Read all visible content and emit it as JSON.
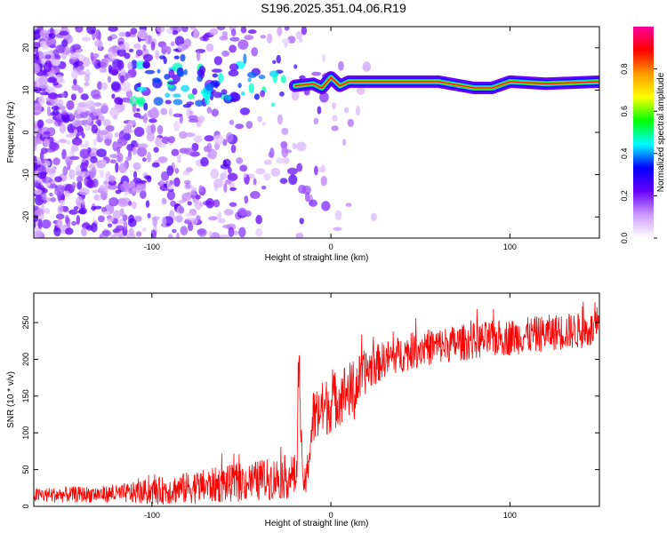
{
  "figure_title": "S196.2025.351.04.06.R19",
  "chart_data": [
    {
      "type": "heatmap",
      "title": "S196.2025.351.04.06.R19",
      "xlabel": "Height of straight line (km)",
      "ylabel": "Frequency (Hz)",
      "xlim": [
        -166,
        150
      ],
      "ylim": [
        -25,
        25
      ],
      "xticks": [
        -100,
        0,
        100
      ],
      "yticks": [
        -20,
        -10,
        0,
        10,
        20
      ],
      "colorbar": {
        "label": "Normalized spectral amplitude",
        "range": [
          0,
          1
        ],
        "ticks": [
          0.0,
          0.2,
          0.4,
          0.6,
          0.8
        ],
        "tick_labels": [
          "0.0",
          "0.2",
          "0.4",
          "0.6",
          "0.8"
        ],
        "colors": [
          "#ffffff",
          "#cc99ff",
          "#6600ff",
          "#0000ff",
          "#00ffff",
          "#00ff00",
          "#ffff00",
          "#ff9900",
          "#ff0000",
          "#ff0099"
        ]
      },
      "signal_track": {
        "description": "Strong narrow band near 12 Hz from about -20 km to 150 km",
        "x": [
          -20,
          -10,
          -5,
          0,
          5,
          10,
          20,
          40,
          60,
          80,
          90,
          100,
          120,
          150
        ],
        "frequency": [
          11,
          11.5,
          10.5,
          13,
          11,
          12,
          12,
          12,
          12,
          10.5,
          10.5,
          12,
          11.5,
          12
        ],
        "peak_amplitude": 0.9
      },
      "noise_region": {
        "description": "Scattered low amplitude noise across all frequencies for heights below about -20 km",
        "x_range": [
          -166,
          -20
        ],
        "amplitude_range": [
          0.05,
          0.25
        ]
      }
    },
    {
      "type": "line",
      "xlabel": "Height of straight line (km)",
      "ylabel": "SNR (10 * v/v)",
      "xlim": [
        -166,
        150
      ],
      "ylim": [
        0,
        290
      ],
      "xticks": [
        -100,
        0,
        100
      ],
      "yticks": [
        0,
        50,
        100,
        150,
        200,
        250
      ],
      "color": "#ff0000",
      "trend": {
        "x": [
          -166,
          -120,
          -100,
          -80,
          -60,
          -40,
          -25,
          -19,
          -18,
          -16,
          -14,
          -10,
          -5,
          0,
          5,
          10,
          13,
          15,
          20,
          30,
          50,
          80,
          100,
          130,
          150
        ],
        "mean": [
          15,
          17,
          20,
          25,
          30,
          35,
          40,
          42,
          210,
          40,
          30,
          120,
          130,
          140,
          150,
          160,
          150,
          170,
          185,
          200,
          215,
          225,
          230,
          238,
          240
        ],
        "spread": [
          10,
          12,
          18,
          22,
          25,
          28,
          30,
          30,
          40,
          20,
          20,
          40,
          40,
          40,
          40,
          40,
          40,
          35,
          30,
          25,
          25,
          25,
          25,
          25,
          25
        ]
      }
    }
  ]
}
